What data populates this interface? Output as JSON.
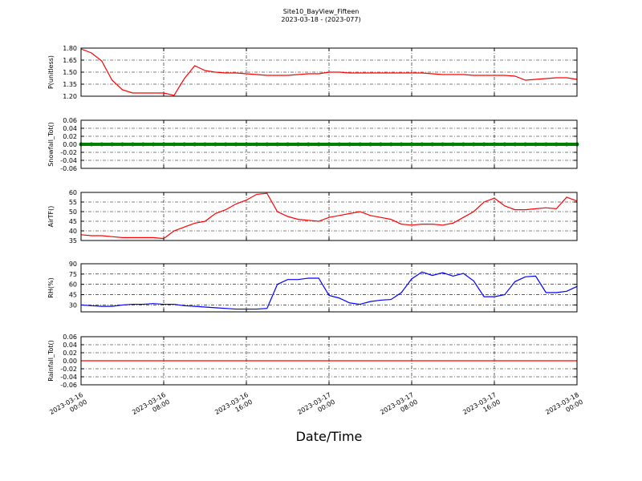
{
  "chart_data": [
    {
      "type": "line",
      "title": "Site10_BayView_Fifteen",
      "subtitle": "2023-03-18 - (2023-077)",
      "ylabel": "P(unitless)",
      "x": [
        "2023-03-16 00:00",
        "2023-03-16 01:00",
        "2023-03-16 02:00",
        "2023-03-16 03:00",
        "2023-03-16 04:00",
        "2023-03-16 05:00",
        "2023-03-16 06:00",
        "2023-03-16 07:00",
        "2023-03-16 08:00",
        "2023-03-16 09:00",
        "2023-03-16 10:00",
        "2023-03-16 11:00",
        "2023-03-16 12:00",
        "2023-03-16 13:00",
        "2023-03-16 14:00",
        "2023-03-16 15:00",
        "2023-03-16 16:00",
        "2023-03-16 17:00",
        "2023-03-16 18:00",
        "2023-03-16 19:00",
        "2023-03-16 20:00",
        "2023-03-16 21:00",
        "2023-03-16 22:00",
        "2023-03-16 23:00",
        "2023-03-17 00:00",
        "2023-03-17 01:00",
        "2023-03-17 02:00",
        "2023-03-17 03:00",
        "2023-03-17 04:00",
        "2023-03-17 05:00",
        "2023-03-17 06:00",
        "2023-03-17 07:00",
        "2023-03-17 08:00",
        "2023-03-17 09:00",
        "2023-03-17 10:00",
        "2023-03-17 11:00",
        "2023-03-17 12:00",
        "2023-03-17 13:00",
        "2023-03-17 14:00",
        "2023-03-17 15:00",
        "2023-03-17 16:00",
        "2023-03-17 17:00",
        "2023-03-17 18:00",
        "2023-03-17 19:00",
        "2023-03-17 20:00",
        "2023-03-17 21:00",
        "2023-03-17 22:00",
        "2023-03-17 23:00",
        "2023-03-18 00:00"
      ],
      "series": [
        {
          "color": "#ff0000",
          "values": [
            1.79,
            1.74,
            1.64,
            1.4,
            1.28,
            1.24,
            1.24,
            1.24,
            1.24,
            1.21,
            1.42,
            1.58,
            1.52,
            1.5,
            1.49,
            1.49,
            1.48,
            1.47,
            1.46,
            1.46,
            1.46,
            1.47,
            1.48,
            1.48,
            1.5,
            1.5,
            1.49,
            1.49,
            1.49,
            1.49,
            1.49,
            1.49,
            1.49,
            1.49,
            1.48,
            1.47,
            1.47,
            1.47,
            1.46,
            1.46,
            1.46,
            1.46,
            1.45,
            1.4,
            1.41,
            1.42,
            1.43,
            1.43,
            1.41
          ]
        }
      ],
      "xlim": [
        "2023-03-16 00:00",
        "2023-03-18 00:00"
      ],
      "xticks": [
        "2023-03-16 00:00",
        "2023-03-16 08:00",
        "2023-03-16 16:00",
        "2023-03-17 00:00",
        "2023-03-17 08:00",
        "2023-03-17 16:00",
        "2023-03-18 00:00"
      ],
      "ylim": [
        1.2,
        1.8
      ],
      "yticks": [
        {
          "value": 1.2,
          "label": "1.20"
        },
        {
          "value": 1.35,
          "label": "1.35"
        },
        {
          "value": 1.5,
          "label": "1.50"
        },
        {
          "value": 1.65,
          "label": "1.65"
        },
        {
          "value": 1.8,
          "label": "1.80"
        }
      ],
      "grid": true
    },
    {
      "type": "line",
      "ylabel": "Snowfall_Tot()",
      "x": [
        "2023-03-16 00:00",
        "2023-03-16 01:00",
        "2023-03-16 02:00",
        "2023-03-16 03:00",
        "2023-03-16 04:00",
        "2023-03-16 05:00",
        "2023-03-16 06:00",
        "2023-03-16 07:00",
        "2023-03-16 08:00",
        "2023-03-16 09:00",
        "2023-03-16 10:00",
        "2023-03-16 11:00",
        "2023-03-16 12:00",
        "2023-03-16 13:00",
        "2023-03-16 14:00",
        "2023-03-16 15:00",
        "2023-03-16 16:00",
        "2023-03-16 17:00",
        "2023-03-16 18:00",
        "2023-03-16 19:00",
        "2023-03-16 20:00",
        "2023-03-16 21:00",
        "2023-03-16 22:00",
        "2023-03-16 23:00",
        "2023-03-17 00:00",
        "2023-03-17 01:00",
        "2023-03-17 02:00",
        "2023-03-17 03:00",
        "2023-03-17 04:00",
        "2023-03-17 05:00",
        "2023-03-17 06:00",
        "2023-03-17 07:00",
        "2023-03-17 08:00",
        "2023-03-17 09:00",
        "2023-03-17 10:00",
        "2023-03-17 11:00",
        "2023-03-17 12:00",
        "2023-03-17 13:00",
        "2023-03-17 14:00",
        "2023-03-17 15:00",
        "2023-03-17 16:00",
        "2023-03-17 17:00",
        "2023-03-17 18:00",
        "2023-03-17 19:00",
        "2023-03-17 20:00",
        "2023-03-17 21:00",
        "2023-03-17 22:00",
        "2023-03-17 23:00",
        "2023-03-18 00:00"
      ],
      "series": [
        {
          "color": "#008000",
          "marker": "circle",
          "values": [
            0,
            0,
            0,
            0,
            0,
            0,
            0,
            0,
            0,
            0,
            0,
            0,
            0,
            0,
            0,
            0,
            0,
            0,
            0,
            0,
            0,
            0,
            0,
            0,
            0,
            0,
            0,
            0,
            0,
            0,
            0,
            0,
            0,
            0,
            0,
            0,
            0,
            0,
            0,
            0,
            0,
            0,
            0,
            0,
            0,
            0,
            0,
            0,
            0
          ]
        }
      ],
      "xlim": [
        "2023-03-16 00:00",
        "2023-03-18 00:00"
      ],
      "xticks": [
        "2023-03-16 00:00",
        "2023-03-16 08:00",
        "2023-03-16 16:00",
        "2023-03-17 00:00",
        "2023-03-17 08:00",
        "2023-03-17 16:00",
        "2023-03-18 00:00"
      ],
      "ylim": [
        -0.06,
        0.06
      ],
      "yticks": [
        -0.06,
        -0.04,
        -0.02,
        {
          "value": 0,
          "label": "0.00"
        },
        0.02,
        0.04,
        0.06
      ],
      "grid": true
    },
    {
      "type": "line",
      "ylabel": "AirTF()",
      "x": [
        "2023-03-16 00:00",
        "2023-03-16 01:00",
        "2023-03-16 02:00",
        "2023-03-16 03:00",
        "2023-03-16 04:00",
        "2023-03-16 05:00",
        "2023-03-16 06:00",
        "2023-03-16 07:00",
        "2023-03-16 08:00",
        "2023-03-16 09:00",
        "2023-03-16 10:00",
        "2023-03-16 11:00",
        "2023-03-16 12:00",
        "2023-03-16 13:00",
        "2023-03-16 14:00",
        "2023-03-16 15:00",
        "2023-03-16 16:00",
        "2023-03-16 17:00",
        "2023-03-16 18:00",
        "2023-03-16 19:00",
        "2023-03-16 20:00",
        "2023-03-16 21:00",
        "2023-03-16 22:00",
        "2023-03-16 23:00",
        "2023-03-17 00:00",
        "2023-03-17 01:00",
        "2023-03-17 02:00",
        "2023-03-17 03:00",
        "2023-03-17 04:00",
        "2023-03-17 05:00",
        "2023-03-17 06:00",
        "2023-03-17 07:00",
        "2023-03-17 08:00",
        "2023-03-17 09:00",
        "2023-03-17 10:00",
        "2023-03-17 11:00",
        "2023-03-17 12:00",
        "2023-03-17 13:00",
        "2023-03-17 14:00",
        "2023-03-17 15:00",
        "2023-03-17 16:00",
        "2023-03-17 17:00",
        "2023-03-17 18:00",
        "2023-03-17 19:00",
        "2023-03-17 20:00",
        "2023-03-17 21:00",
        "2023-03-17 22:00",
        "2023-03-17 23:00",
        "2023-03-18 00:00"
      ],
      "series": [
        {
          "color": "#ff0000",
          "values": [
            38,
            37.5,
            37.5,
            37,
            36.5,
            36.5,
            36.5,
            36.5,
            36,
            40,
            42,
            44,
            45,
            49,
            51,
            54,
            56,
            59,
            59.5,
            50,
            47.5,
            46,
            45.5,
            45,
            47,
            48,
            49,
            50,
            48,
            47,
            46,
            43.5,
            43,
            43.5,
            43.5,
            43,
            44,
            47,
            50,
            55,
            57,
            53,
            51,
            51,
            51.5,
            52,
            51.5,
            57.5,
            55.5
          ]
        }
      ],
      "xlim": [
        "2023-03-16 00:00",
        "2023-03-18 00:00"
      ],
      "xticks": [
        "2023-03-16 00:00",
        "2023-03-16 08:00",
        "2023-03-16 16:00",
        "2023-03-17 00:00",
        "2023-03-17 08:00",
        "2023-03-17 16:00",
        "2023-03-18 00:00"
      ],
      "ylim": [
        35,
        60
      ],
      "yticks": [
        35,
        40,
        45,
        50,
        55,
        60
      ],
      "grid": true
    },
    {
      "type": "line",
      "ylabel": "RH(%)",
      "x": [
        "2023-03-16 00:00",
        "2023-03-16 01:00",
        "2023-03-16 02:00",
        "2023-03-16 03:00",
        "2023-03-16 04:00",
        "2023-03-16 05:00",
        "2023-03-16 06:00",
        "2023-03-16 07:00",
        "2023-03-16 08:00",
        "2023-03-16 09:00",
        "2023-03-16 10:00",
        "2023-03-16 11:00",
        "2023-03-16 12:00",
        "2023-03-16 13:00",
        "2023-03-16 14:00",
        "2023-03-16 15:00",
        "2023-03-16 16:00",
        "2023-03-16 17:00",
        "2023-03-16 18:00",
        "2023-03-16 19:00",
        "2023-03-16 20:00",
        "2023-03-16 21:00",
        "2023-03-16 22:00",
        "2023-03-16 23:00",
        "2023-03-17 00:00",
        "2023-03-17 01:00",
        "2023-03-17 02:00",
        "2023-03-17 03:00",
        "2023-03-17 04:00",
        "2023-03-17 05:00",
        "2023-03-17 06:00",
        "2023-03-17 07:00",
        "2023-03-17 08:00",
        "2023-03-17 09:00",
        "2023-03-17 10:00",
        "2023-03-17 11:00",
        "2023-03-17 12:00",
        "2023-03-17 13:00",
        "2023-03-17 14:00",
        "2023-03-17 15:00",
        "2023-03-17 16:00",
        "2023-03-17 17:00",
        "2023-03-17 18:00",
        "2023-03-17 19:00",
        "2023-03-17 20:00",
        "2023-03-17 21:00",
        "2023-03-17 22:00",
        "2023-03-17 23:00",
        "2023-03-18 00:00"
      ],
      "series": [
        {
          "color": "#0000ff",
          "values": [
            30,
            29,
            28,
            28,
            30,
            31,
            31,
            32,
            31,
            31,
            29,
            28,
            27,
            26,
            25,
            24,
            24,
            24,
            25,
            60,
            67,
            67,
            69,
            69,
            44,
            40,
            33,
            31,
            35,
            37,
            38,
            48,
            68,
            78,
            73,
            77,
            72,
            76,
            65,
            42,
            42,
            45,
            64,
            71,
            72,
            48,
            48,
            50,
            57
          ]
        }
      ],
      "xlim": [
        "2023-03-16 00:00",
        "2023-03-18 00:00"
      ],
      "xticks": [
        "2023-03-16 00:00",
        "2023-03-16 08:00",
        "2023-03-16 16:00",
        "2023-03-17 00:00",
        "2023-03-17 08:00",
        "2023-03-17 16:00",
        "2023-03-18 00:00"
      ],
      "ylim": [
        20,
        90
      ],
      "yticks": [
        30,
        45,
        60,
        75,
        90
      ],
      "grid": true
    },
    {
      "type": "line",
      "ylabel": "Rainfall_Tot()",
      "xlabel": "Date/Time",
      "x": [
        "2023-03-16 00:00",
        "2023-03-16 01:00",
        "2023-03-16 02:00",
        "2023-03-16 03:00",
        "2023-03-16 04:00",
        "2023-03-16 05:00",
        "2023-03-16 06:00",
        "2023-03-16 07:00",
        "2023-03-16 08:00",
        "2023-03-16 09:00",
        "2023-03-16 10:00",
        "2023-03-16 11:00",
        "2023-03-16 12:00",
        "2023-03-16 13:00",
        "2023-03-16 14:00",
        "2023-03-16 15:00",
        "2023-03-16 16:00",
        "2023-03-16 17:00",
        "2023-03-16 18:00",
        "2023-03-16 19:00",
        "2023-03-16 20:00",
        "2023-03-16 21:00",
        "2023-03-16 22:00",
        "2023-03-16 23:00",
        "2023-03-17 00:00",
        "2023-03-17 01:00",
        "2023-03-17 02:00",
        "2023-03-17 03:00",
        "2023-03-17 04:00",
        "2023-03-17 05:00",
        "2023-03-17 06:00",
        "2023-03-17 07:00",
        "2023-03-17 08:00",
        "2023-03-17 09:00",
        "2023-03-17 10:00",
        "2023-03-17 11:00",
        "2023-03-17 12:00",
        "2023-03-17 13:00",
        "2023-03-17 14:00",
        "2023-03-17 15:00",
        "2023-03-17 16:00",
        "2023-03-17 17:00",
        "2023-03-17 18:00",
        "2023-03-17 19:00",
        "2023-03-17 20:00",
        "2023-03-17 21:00",
        "2023-03-17 22:00",
        "2023-03-17 23:00",
        "2023-03-18 00:00"
      ],
      "series": [
        {
          "color": "#ff0000",
          "values": [
            0,
            0,
            0,
            0,
            0,
            0,
            0,
            0,
            0,
            0,
            0,
            0,
            0,
            0,
            0,
            0,
            0,
            0,
            0,
            0,
            0,
            0,
            0,
            0,
            0,
            0,
            0,
            0,
            0,
            0,
            0,
            0,
            0,
            0,
            0,
            0,
            0,
            0,
            0,
            0,
            0,
            0,
            0,
            0,
            0,
            0,
            0,
            0,
            0
          ]
        }
      ],
      "xlim": [
        "2023-03-16 00:00",
        "2023-03-18 00:00"
      ],
      "xticks": [
        "2023-03-16 00:00",
        "2023-03-16 08:00",
        "2023-03-16 16:00",
        "2023-03-17 00:00",
        "2023-03-17 08:00",
        "2023-03-17 16:00",
        "2023-03-18 00:00"
      ],
      "ylim": [
        -0.06,
        0.06
      ],
      "yticks": [
        -0.06,
        -0.04,
        -0.02,
        {
          "value": 0,
          "label": "0.00"
        },
        0.02,
        0.04,
        0.06
      ],
      "grid": true
    }
  ]
}
